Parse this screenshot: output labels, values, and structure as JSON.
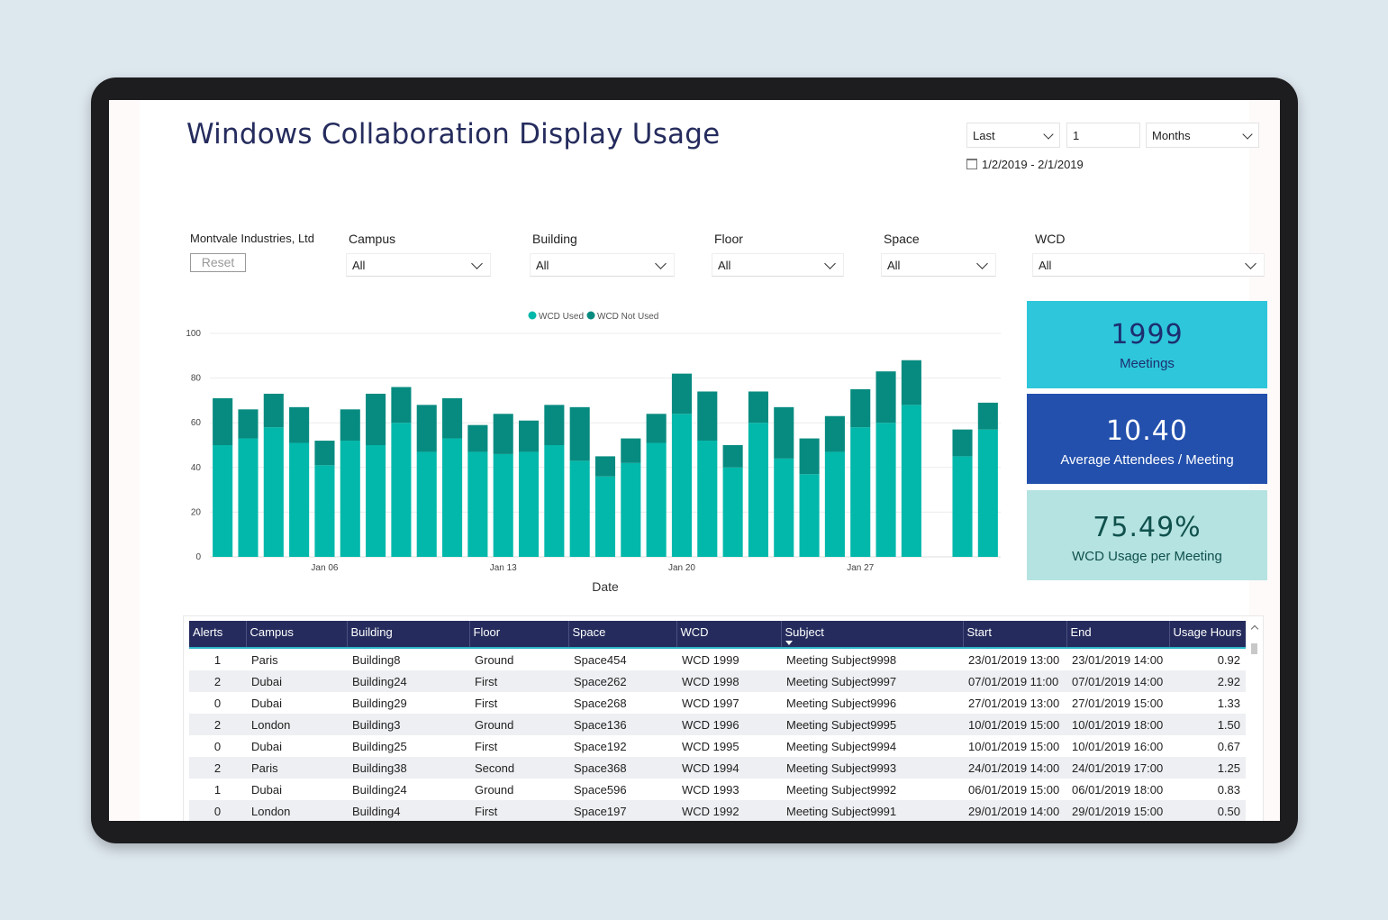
{
  "title": "Windows Collaboration Display Usage",
  "date_filter": {
    "mode": "Last",
    "count": "1",
    "unit": "Months",
    "range": "1/2/2019 - 2/1/2019"
  },
  "slicers": {
    "org": "Montvale Industries, Ltd",
    "reset": "Reset",
    "items": [
      {
        "label": "Campus",
        "value": "All"
      },
      {
        "label": "Building",
        "value": "All"
      },
      {
        "label": "Floor",
        "value": "All"
      },
      {
        "label": "Space",
        "value": "All"
      },
      {
        "label": "WCD",
        "value": "All"
      }
    ]
  },
  "kpis": [
    {
      "value": "1999",
      "label": "Meetings",
      "bg": "#2ec6da",
      "fg": "#1d2f6f"
    },
    {
      "value": "10.40",
      "label": "Average Attendees / Meeting",
      "bg": "#2350ad",
      "fg": "#ffffff"
    },
    {
      "value": "75.49%",
      "label": "WCD Usage per Meeting",
      "bg": "#b5e3e1",
      "fg": "#10514d"
    }
  ],
  "colors": {
    "used": "#01b8aa",
    "not_used": "#078b80",
    "header": "#252c5d",
    "title": "#252c5d"
  },
  "chart_data": {
    "type": "bar",
    "stacked": true,
    "xlabel": "Date",
    "ylabel": "",
    "ylim": [
      0,
      100
    ],
    "yticks": [
      0,
      20,
      40,
      60,
      80,
      100
    ],
    "x_tick_labels": [
      "Jan 06",
      "Jan 13",
      "Jan 20",
      "Jan 27"
    ],
    "x_tick_indices": [
      4,
      11,
      18,
      25
    ],
    "legend_position": "top-center",
    "grid": true,
    "categories": [
      "Jan 02",
      "Jan 03",
      "Jan 04",
      "Jan 05",
      "Jan 06",
      "Jan 07",
      "Jan 08",
      "Jan 09",
      "Jan 10",
      "Jan 11",
      "Jan 12",
      "Jan 13",
      "Jan 14",
      "Jan 15",
      "Jan 16",
      "Jan 17",
      "Jan 18",
      "Jan 19",
      "Jan 20",
      "Jan 21",
      "Jan 22",
      "Jan 23",
      "Jan 24",
      "Jan 25",
      "Jan 26",
      "Jan 27",
      "Jan 28",
      "Jan 29",
      "Jan 30",
      "Jan 31",
      "Feb 01"
    ],
    "series": [
      {
        "name": "WCD Used",
        "color": "#01b8aa",
        "values": [
          50,
          53,
          58,
          51,
          41,
          52,
          50,
          60,
          47,
          53,
          47,
          46,
          47,
          50,
          43,
          36,
          42,
          51,
          64,
          52,
          40,
          60,
          44,
          37,
          47,
          58,
          60,
          68,
          null,
          45,
          57
        ]
      },
      {
        "name": "WCD Not Used",
        "color": "#078b80",
        "values": [
          21,
          13,
          15,
          16,
          11,
          14,
          23,
          16,
          21,
          18,
          12,
          18,
          14,
          18,
          24,
          9,
          11,
          13,
          18,
          22,
          10,
          14,
          23,
          16,
          16,
          17,
          23,
          20,
          null,
          12,
          12
        ]
      }
    ]
  },
  "table": {
    "columns": [
      "Alerts",
      "Campus",
      "Building",
      "Floor",
      "Space",
      "WCD",
      "Subject",
      "Start",
      "End",
      "Usage Hours"
    ],
    "rows": [
      [
        "1",
        "Paris",
        "Building8",
        "Ground",
        "Space454",
        "WCD 1999",
        "Meeting Subject9998",
        "23/01/2019 13:00",
        "23/01/2019 14:00",
        "0.92"
      ],
      [
        "2",
        "Dubai",
        "Building24",
        "First",
        "Space262",
        "WCD 1998",
        "Meeting Subject9997",
        "07/01/2019 11:00",
        "07/01/2019 14:00",
        "2.92"
      ],
      [
        "0",
        "Dubai",
        "Building29",
        "First",
        "Space268",
        "WCD 1997",
        "Meeting Subject9996",
        "27/01/2019 13:00",
        "27/01/2019 15:00",
        "1.33"
      ],
      [
        "2",
        "London",
        "Building3",
        "Ground",
        "Space136",
        "WCD 1996",
        "Meeting Subject9995",
        "10/01/2019 15:00",
        "10/01/2019 18:00",
        "1.50"
      ],
      [
        "0",
        "Dubai",
        "Building25",
        "First",
        "Space192",
        "WCD 1995",
        "Meeting Subject9994",
        "10/01/2019 15:00",
        "10/01/2019 16:00",
        "0.67"
      ],
      [
        "2",
        "Paris",
        "Building38",
        "Second",
        "Space368",
        "WCD 1994",
        "Meeting Subject9993",
        "24/01/2019 14:00",
        "24/01/2019 17:00",
        "1.25"
      ],
      [
        "1",
        "Dubai",
        "Building24",
        "Ground",
        "Space596",
        "WCD 1993",
        "Meeting Subject9992",
        "06/01/2019 15:00",
        "06/01/2019 18:00",
        "0.83"
      ],
      [
        "0",
        "London",
        "Building4",
        "First",
        "Space197",
        "WCD 1992",
        "Meeting Subject9991",
        "29/01/2019 14:00",
        "29/01/2019 15:00",
        "0.50"
      ]
    ]
  }
}
